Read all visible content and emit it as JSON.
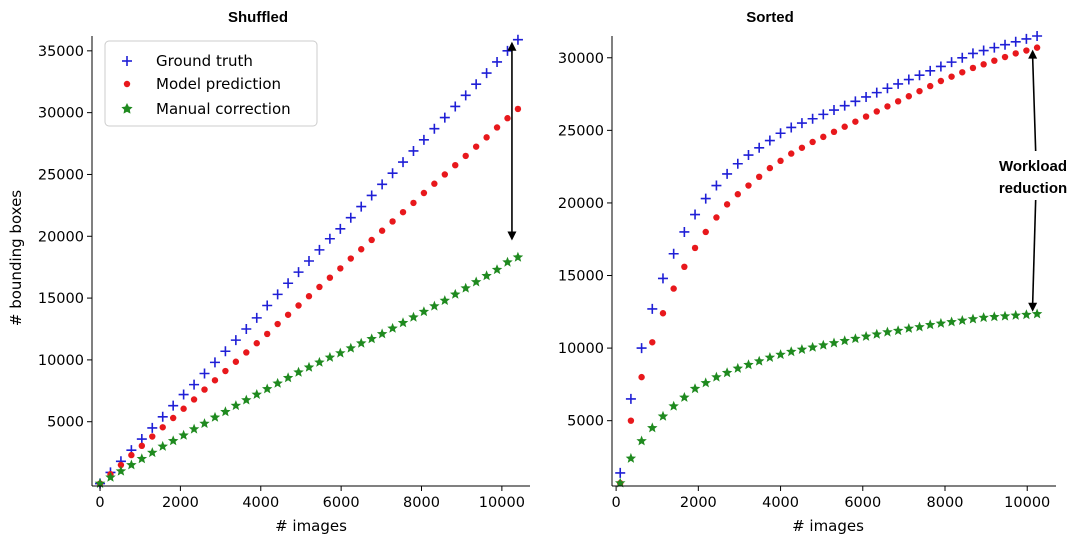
{
  "chart_data": [
    {
      "type": "scatter",
      "title": "Shuffled",
      "xlabel": "# images",
      "ylabel": "# bounding boxes",
      "xlim": [
        -200,
        10700
      ],
      "ylim": [
        -200,
        36200
      ],
      "xticks": [
        0,
        2000,
        4000,
        6000,
        8000,
        10000
      ],
      "xtick_labels": [
        "0",
        "2000",
        "4000",
        "6000",
        "8000",
        "10000"
      ],
      "yticks": [
        5000,
        10000,
        15000,
        20000,
        25000,
        30000,
        35000
      ],
      "ytick_labels": [
        "5000",
        "10000",
        "15000",
        "20000",
        "25000",
        "30000",
        "35000"
      ],
      "grid": false,
      "legend": "top-left",
      "x": [
        0,
        260,
        520,
        780,
        1040,
        1300,
        1560,
        1820,
        2080,
        2340,
        2600,
        2860,
        3120,
        3380,
        3640,
        3900,
        4160,
        4420,
        4680,
        4940,
        5200,
        5460,
        5720,
        5980,
        6240,
        6500,
        6760,
        7020,
        7280,
        7540,
        7800,
        8060,
        8320,
        8580,
        8840,
        9100,
        9360,
        9620,
        9880,
        10140,
        10400
      ],
      "series": [
        {
          "name": "Ground truth",
          "marker": "plus",
          "color": "#1f1fd6",
          "values": [
            0,
            900,
            1800,
            2700,
            3600,
            4500,
            5400,
            6300,
            7200,
            8000,
            8900,
            9800,
            10700,
            11600,
            12500,
            13400,
            14400,
            15300,
            16200,
            17100,
            18000,
            18900,
            19800,
            20600,
            21500,
            22400,
            23300,
            24200,
            25100,
            26000,
            26900,
            27800,
            28700,
            29600,
            30500,
            31400,
            32300,
            33200,
            34100,
            35000,
            35900
          ]
        },
        {
          "name": "Model prediction",
          "marker": "circle",
          "color": "#e8181c",
          "values": [
            0,
            750,
            1500,
            2300,
            3050,
            3800,
            4550,
            5300,
            6050,
            6800,
            7600,
            8350,
            9100,
            9850,
            10600,
            11350,
            12100,
            12900,
            13650,
            14400,
            15150,
            15900,
            16650,
            17400,
            18200,
            18950,
            19700,
            20450,
            21200,
            21950,
            22700,
            23500,
            24250,
            25000,
            25750,
            26500,
            27250,
            28000,
            28800,
            29550,
            30300
          ]
        },
        {
          "name": "Manual correction",
          "marker": "star",
          "color": "#1f8a1f",
          "values": [
            0,
            500,
            1000,
            1500,
            2000,
            2500,
            3000,
            3450,
            3900,
            4400,
            4850,
            5350,
            5800,
            6300,
            6750,
            7200,
            7650,
            8100,
            8550,
            9000,
            9400,
            9800,
            10200,
            10550,
            10950,
            11350,
            11700,
            12100,
            12550,
            13000,
            13450,
            13900,
            14350,
            14800,
            15300,
            15800,
            16300,
            16800,
            17300,
            17900,
            18300
          ]
        }
      ],
      "arrow": {
        "x": 10400,
        "from": 35900,
        "to": 19500
      }
    },
    {
      "type": "scatter",
      "title": "Sorted",
      "xlabel": "# images",
      "ylabel": "",
      "xlim": [
        -100,
        10700
      ],
      "ylim": [
        500,
        31500
      ],
      "xticks": [
        0,
        2000,
        4000,
        6000,
        8000,
        10000
      ],
      "xtick_labels": [
        "0",
        "2000",
        "4000",
        "6000",
        "8000",
        "10000"
      ],
      "yticks": [
        5000,
        10000,
        15000,
        20000,
        25000,
        30000
      ],
      "ytick_labels": [
        "5000",
        "10000",
        "15000",
        "20000",
        "25000",
        "30000"
      ],
      "grid": false,
      "x": [
        100,
        360,
        620,
        880,
        1140,
        1400,
        1660,
        1920,
        2180,
        2440,
        2700,
        2960,
        3220,
        3480,
        3740,
        4000,
        4260,
        4520,
        4780,
        5040,
        5300,
        5560,
        5820,
        6080,
        6340,
        6600,
        6860,
        7120,
        7380,
        7640,
        7900,
        8160,
        8420,
        8680,
        8940,
        9200,
        9460,
        9720,
        9980,
        10240
      ],
      "series": [
        {
          "name": "Ground truth",
          "marker": "plus",
          "color": "#1f1fd6",
          "values": [
            1400,
            6500,
            10000,
            12700,
            14800,
            16500,
            18000,
            19200,
            20300,
            21200,
            22000,
            22700,
            23300,
            23800,
            24300,
            24800,
            25200,
            25500,
            25800,
            26100,
            26400,
            26700,
            27000,
            27300,
            27600,
            27900,
            28200,
            28500,
            28800,
            29100,
            29400,
            29700,
            30000,
            30300,
            30500,
            30700,
            30900,
            31100,
            31300,
            31500
          ]
        },
        {
          "name": "Model prediction",
          "marker": "circle",
          "color": "#e8181c",
          "values": [
            700,
            5000,
            8000,
            10400,
            12400,
            14100,
            15600,
            16900,
            18000,
            19000,
            19900,
            20600,
            21200,
            21800,
            22400,
            22900,
            23400,
            23800,
            24200,
            24550,
            24900,
            25250,
            25600,
            25950,
            26300,
            26650,
            27000,
            27350,
            27700,
            28050,
            28400,
            28700,
            29000,
            29300,
            29550,
            29800,
            30050,
            30300,
            30500,
            30700
          ]
        },
        {
          "name": "Manual correction",
          "marker": "star",
          "color": "#1f8a1f",
          "values": [
            700,
            2400,
            3600,
            4500,
            5300,
            6000,
            6600,
            7200,
            7600,
            8000,
            8300,
            8600,
            8850,
            9100,
            9350,
            9550,
            9750,
            9900,
            10050,
            10200,
            10350,
            10500,
            10650,
            10800,
            10950,
            11100,
            11200,
            11350,
            11450,
            11600,
            11700,
            11800,
            11900,
            12000,
            12100,
            12150,
            12200,
            12250,
            12300,
            12350
          ]
        }
      ],
      "arrow": {
        "x": 10400,
        "from": 12300,
        "to": 30700
      },
      "annotation": [
        "Workload",
        "reduction"
      ]
    }
  ]
}
